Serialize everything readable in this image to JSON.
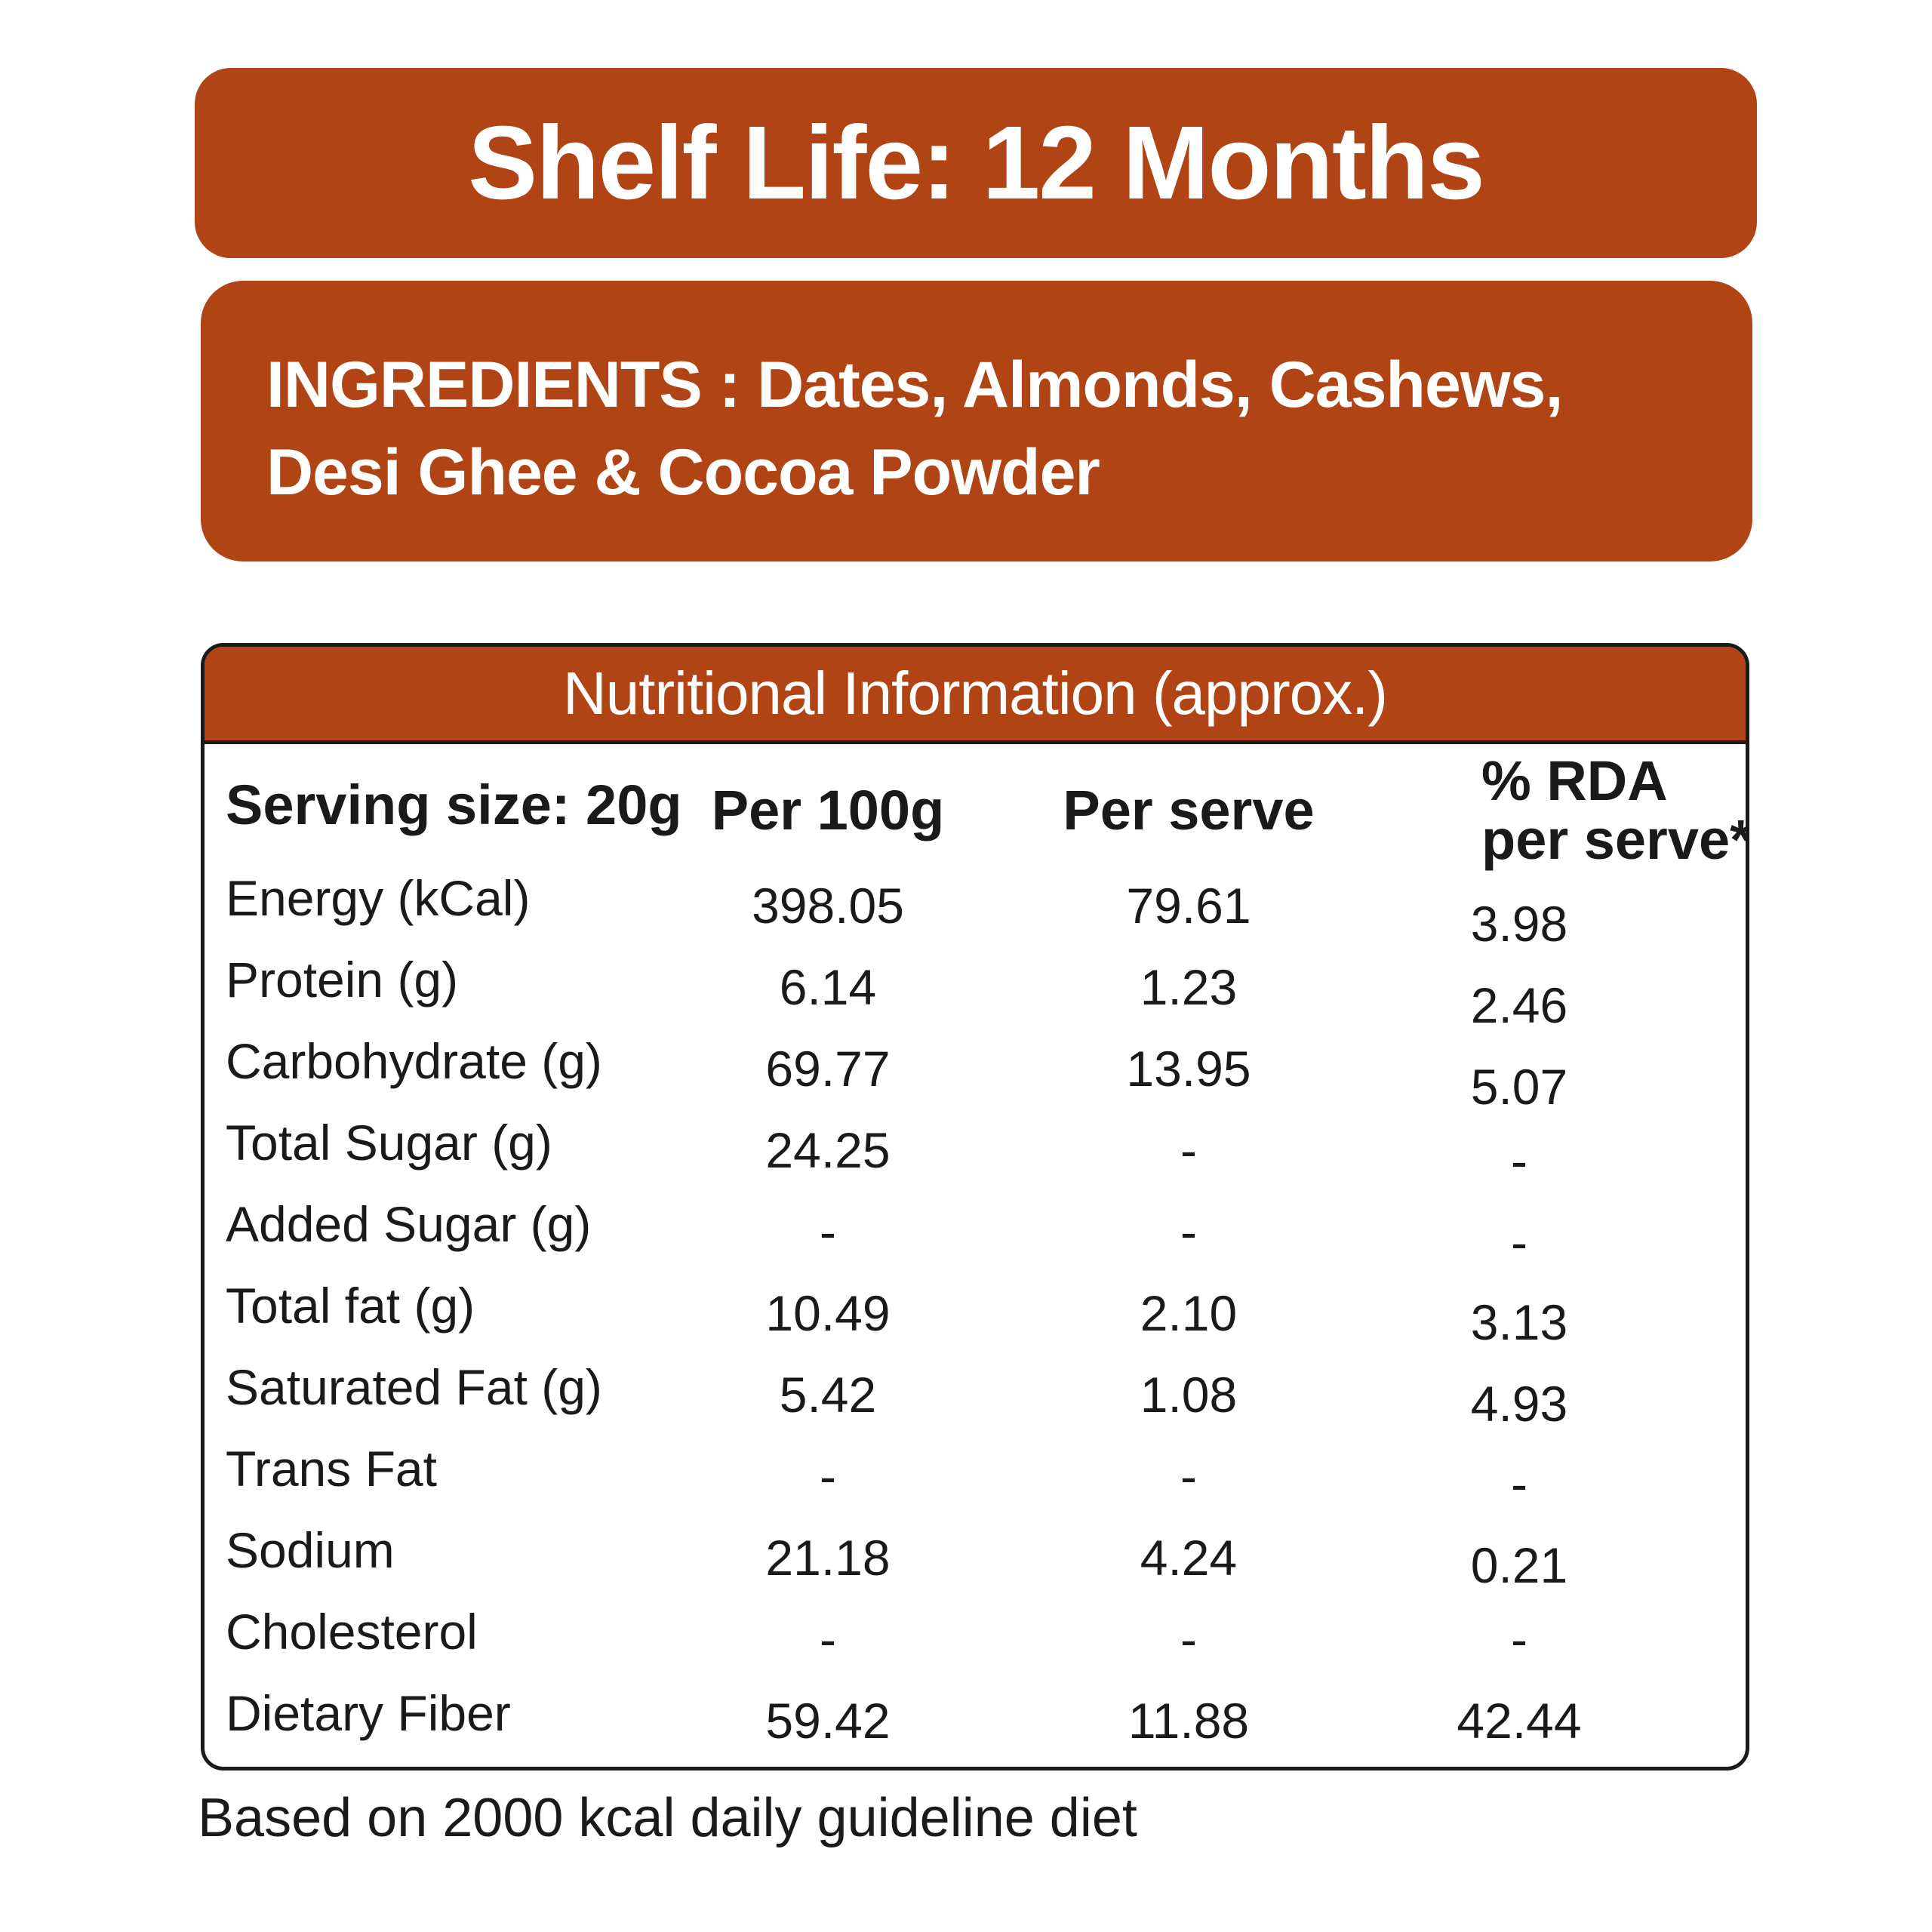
{
  "shelf_life": "Shelf Life: 12 Months",
  "ingredients": "INGREDIENTS : Dates, Almonds, Cashews, Desi Ghee & Cocoa Powder",
  "nutrition": {
    "title": "Nutritional Information (approx.)",
    "headers": {
      "serving": "Serving size: 20g",
      "per100": "Per 100g",
      "perserve": "Per serve",
      "rda_line1": "% RDA",
      "rda_line2": "per serve*"
    },
    "rows": [
      {
        "label": "Energy (kCal)",
        "per100": "398.05",
        "perserve": "79.61",
        "rda": "3.98"
      },
      {
        "label": "Protein (g)",
        "per100": "6.14",
        "perserve": "1.23",
        "rda": "2.46"
      },
      {
        "label": "Carbohydrate (g)",
        "per100": "69.77",
        "perserve": "13.95",
        "rda": "5.07"
      },
      {
        "label": "Total Sugar (g)",
        "per100": "24.25",
        "perserve": "-",
        "rda": "-"
      },
      {
        "label": "Added Sugar (g)",
        "per100": "-",
        "perserve": "-",
        "rda": "-"
      },
      {
        "label": "Total fat (g)",
        "per100": "10.49",
        "perserve": "2.10",
        "rda": "3.13"
      },
      {
        "label": "Saturated Fat (g)",
        "per100": "5.42",
        "perserve": "1.08",
        "rda": "4.93"
      },
      {
        "label": "Trans Fat",
        "per100": "-",
        "perserve": "-",
        "rda": "-"
      },
      {
        "label": "Sodium",
        "per100": "21.18",
        "perserve": "4.24",
        "rda": "0.21"
      },
      {
        "label": "Cholesterol",
        "per100": "-",
        "perserve": "-",
        "rda": "-"
      },
      {
        "label": "Dietary Fiber",
        "per100": "59.42",
        "perserve": "11.88",
        "rda": "42.44"
      }
    ]
  },
  "footnote": "Based on 2000 kcal daily guideline diet",
  "colors": {
    "accent": "#b04414",
    "text": "#1a1a1a",
    "banner_text": "#ffffff"
  }
}
